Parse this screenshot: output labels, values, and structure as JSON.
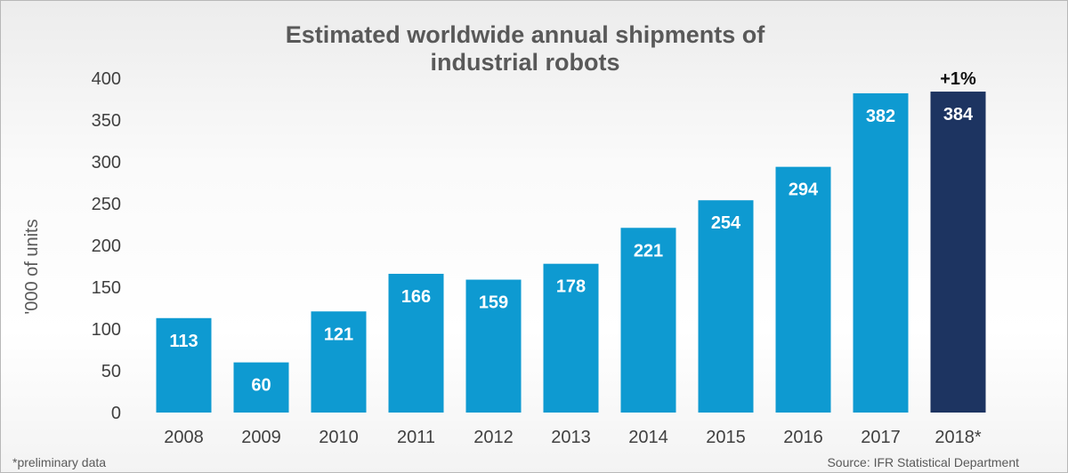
{
  "colors": {
    "bar": "#0E9AD1",
    "bar_highlight": "#1D3461",
    "text": "#404040"
  },
  "source_note": "Source: IFR Statistical Department",
  "footnote": "*preliminary data",
  "chart_data": {
    "type": "bar",
    "title": "Estimated worldwide annual shipments of industrial robots",
    "title_lines": [
      "Estimated worldwide annual shipments of",
      "industrial robots"
    ],
    "xlabel": "",
    "ylabel": "'000 of units",
    "ylim": [
      0,
      400
    ],
    "yticks": [
      0,
      50,
      100,
      150,
      200,
      250,
      300,
      350,
      400
    ],
    "categories": [
      "2008",
      "2009",
      "2010",
      "2011",
      "2012",
      "2013",
      "2014",
      "2015",
      "2016",
      "2017",
      "2018*"
    ],
    "values": [
      113,
      60,
      121,
      166,
      159,
      178,
      221,
      254,
      294,
      382,
      384
    ],
    "highlight_index": 10,
    "annotations": [
      {
        "index": 10,
        "text": "+1%"
      }
    ]
  }
}
